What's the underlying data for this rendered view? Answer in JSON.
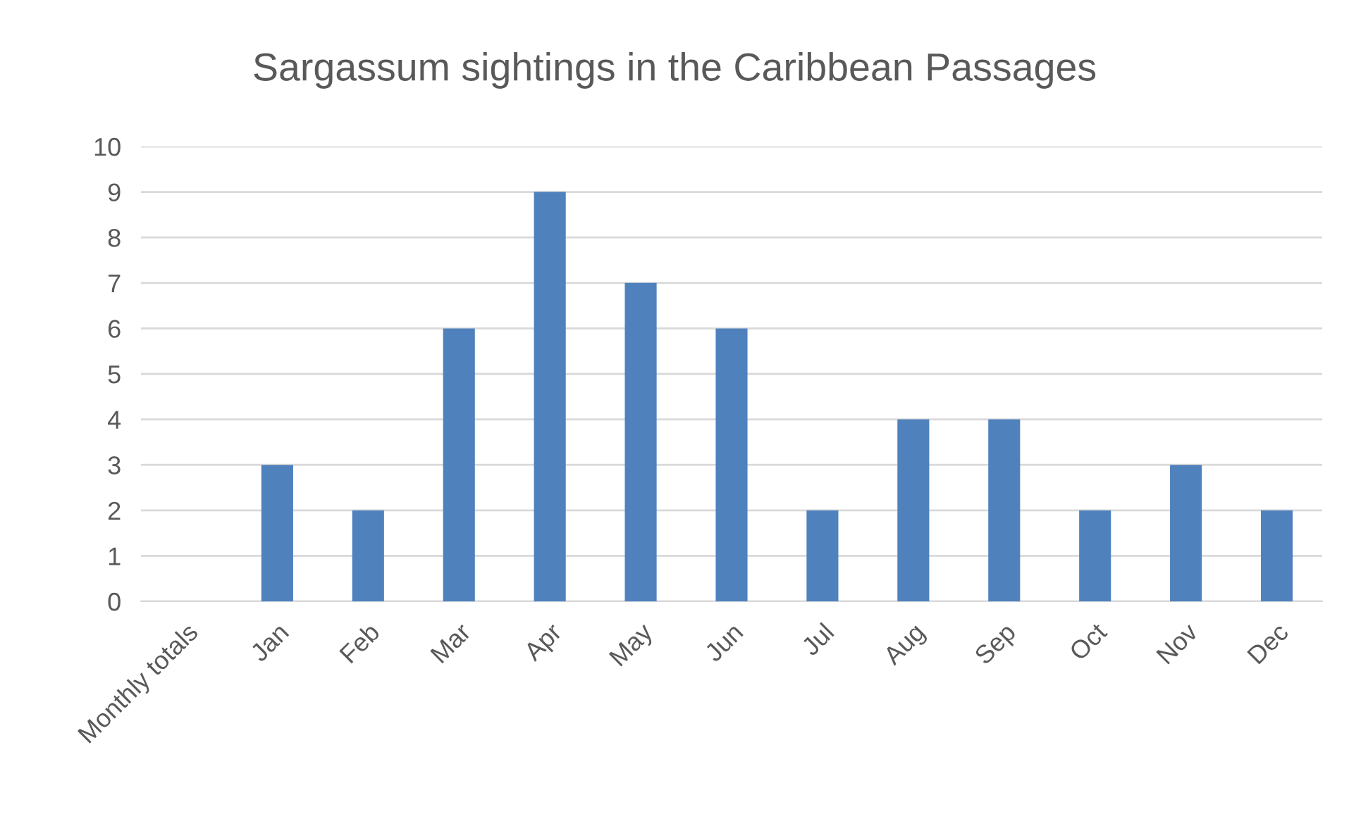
{
  "chart_data": {
    "type": "bar",
    "title": "Sargassum sightings in the Caribbean Passages",
    "categories": [
      "Monthly totals",
      "Jan",
      "Feb",
      "Mar",
      "Apr",
      "May",
      "Jun",
      "Jul",
      "Aug",
      "Sep",
      "Oct",
      "Nov",
      "Dec"
    ],
    "values": [
      null,
      3,
      2,
      6,
      9,
      7,
      6,
      2,
      4,
      4,
      2,
      3,
      2
    ],
    "color": "#4f81bd",
    "ylim": [
      0,
      10
    ],
    "yticks": [
      0,
      1,
      2,
      3,
      4,
      5,
      6,
      7,
      8,
      9,
      10
    ],
    "grid": "y"
  }
}
